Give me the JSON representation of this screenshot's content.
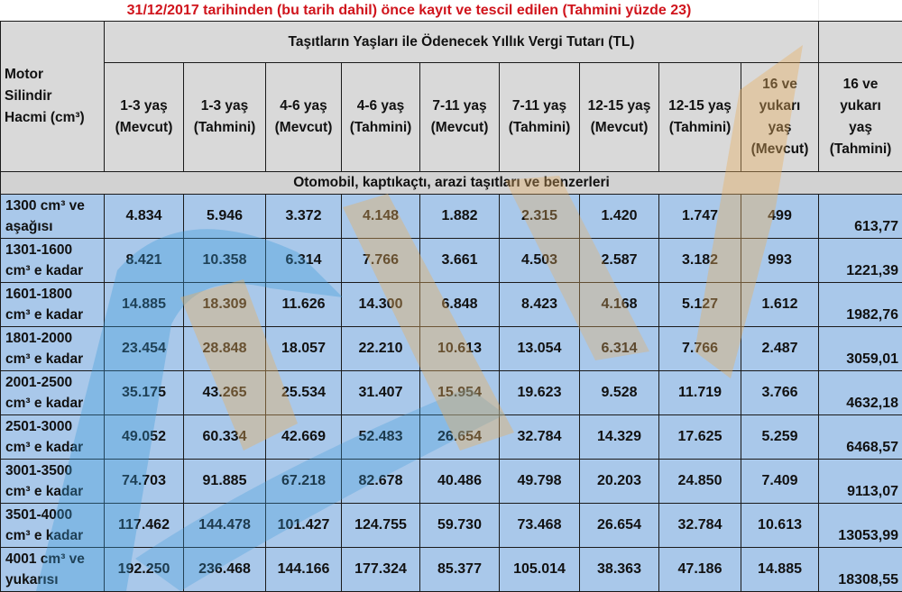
{
  "title": "31/12/2017 tarihinden (bu tarih dahil) önce kayıt ve tescil edilen (Tahmini yüzde 23)",
  "header": {
    "row_label": [
      "Motor",
      "Silindir",
      "Hacmi (cm³)"
    ],
    "group_title": "Taşıtların Yaşları ile Ödenecek Yıllık Vergi Tutarı (TL)",
    "columns": [
      [
        "1-3 yaş",
        "(Mevcut)"
      ],
      [
        "1-3 yaş",
        "(Tahmini)"
      ],
      [
        "4-6 yaş",
        "(Mevcut)"
      ],
      [
        "4-6 yaş",
        "(Tahmini)"
      ],
      [
        "7-11 yaş",
        "(Mevcut)"
      ],
      [
        "7-11 yaş",
        "(Tahmini)"
      ],
      [
        "12-15 yaş",
        "(Mevcut)"
      ],
      [
        "12-15 yaş",
        "(Tahmini)"
      ],
      [
        "16 ve",
        "yukarı",
        "yaş",
        "(Mevcut)"
      ],
      [
        "16 ve",
        "yukarı",
        "yaş",
        "(Tahmini)"
      ]
    ]
  },
  "section_title": "Otomobil, kaptıkaçtı, arazi taşıtları ve benzerleri",
  "rows": [
    {
      "label": [
        "1300 cm³ ve",
        "aşağısı"
      ],
      "values": [
        "4.834",
        "5.946",
        "3.372",
        "4.148",
        "1.882",
        "2.315",
        "1.420",
        "1.747",
        "499",
        "613,77"
      ]
    },
    {
      "label": [
        "1301-1600",
        "cm³ e kadar"
      ],
      "values": [
        "8.421",
        "10.358",
        "6.314",
        "7.766",
        "3.661",
        "4.503",
        "2.587",
        "3.182",
        "993",
        "1221,39"
      ]
    },
    {
      "label": [
        "1601-1800",
        "cm³ e kadar"
      ],
      "values": [
        "14.885",
        "18.309",
        "11.626",
        "14.300",
        "6.848",
        "8.423",
        "4.168",
        "5.127",
        "1.612",
        "1982,76"
      ]
    },
    {
      "label": [
        "1801-2000",
        "cm³ e kadar"
      ],
      "values": [
        "23.454",
        "28.848",
        "18.057",
        "22.210",
        "10.613",
        "13.054",
        "6.314",
        "7.766",
        "2.487",
        "3059,01"
      ]
    },
    {
      "label": [
        "2001-2500",
        "cm³ e kadar"
      ],
      "values": [
        "35.175",
        "43.265",
        "25.534",
        "31.407",
        "15.954",
        "19.623",
        "9.528",
        "11.719",
        "3.766",
        "4632,18"
      ]
    },
    {
      "label": [
        "2501-3000",
        "cm³ e kadar"
      ],
      "values": [
        "49.052",
        "60.334",
        "42.669",
        "52.483",
        "26.654",
        "32.784",
        "14.329",
        "17.625",
        "5.259",
        "6468,57"
      ]
    },
    {
      "label": [
        "3001-3500",
        "cm³ e kadar"
      ],
      "values": [
        "74.703",
        "91.885",
        "67.218",
        "82.678",
        "40.486",
        "49.798",
        "20.203",
        "24.850",
        "7.409",
        "9113,07"
      ]
    },
    {
      "label": [
        "3501-4000",
        "cm³ e kadar"
      ],
      "values": [
        "117.462",
        "144.478",
        "101.427",
        "124.755",
        "59.730",
        "73.468",
        "26.654",
        "32.784",
        "10.613",
        "13053,99"
      ]
    },
    {
      "label": [
        "4001 cm³ ve",
        "yukarısı"
      ],
      "values": [
        "192.250",
        "236.468",
        "144.166",
        "177.324",
        "85.377",
        "105.014",
        "38.363",
        "47.186",
        "14.885",
        "18308,55"
      ]
    }
  ],
  "colors": {
    "title_red": "#d0141c",
    "header_gray": "#d9d9d9",
    "cell_blue": "#a9c8ea",
    "watermark_blue": "#3a9ad9",
    "watermark_orange": "#e8b060"
  }
}
